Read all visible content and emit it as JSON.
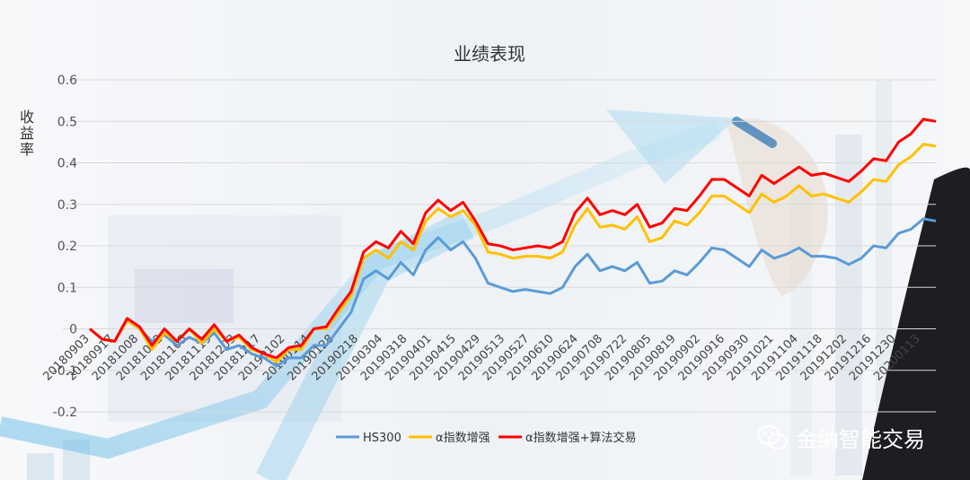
{
  "watermark": {
    "text": "金纳智能交易",
    "icon": "wechat-icon"
  },
  "colors": {
    "hs300": "#5b9bd5",
    "alpha": "#ffc000",
    "alpha_algo": "#ff0000"
  },
  "chart_data": {
    "type": "line",
    "title": "业绩表现",
    "ylabel": "收益率",
    "xlabel": "",
    "ylim": [
      -0.2,
      0.6
    ],
    "yticks": [
      -0.2,
      -0.1,
      0,
      0.1,
      0.2,
      0.3,
      0.4,
      0.5,
      0.6
    ],
    "grid": true,
    "legend": "bottom",
    "x_tick_labels": [
      "20180903",
      "20180917",
      "20181008",
      "20181022",
      "20181105",
      "20181119",
      "20181203",
      "20181217",
      "20190102",
      "20190114",
      "20190128",
      "20190218",
      "20190304",
      "20190318",
      "20190401",
      "20190415",
      "20190429",
      "20190513",
      "20190527",
      "20190610",
      "20190624",
      "20190708",
      "20190722",
      "20190805",
      "20190819",
      "20190902",
      "20190916",
      "20190930",
      "20191021",
      "20191104",
      "20191118",
      "20191202",
      "20191216",
      "20191230",
      "20200113"
    ],
    "series": [
      {
        "name": "HS300",
        "values": [
          0.0,
          -0.025,
          -0.03,
          0.02,
          0.0,
          -0.03,
          -0.015,
          -0.04,
          -0.02,
          -0.035,
          -0.01,
          -0.05,
          -0.04,
          -0.06,
          -0.07,
          -0.09,
          -0.07,
          -0.07,
          -0.04,
          -0.04,
          0.0,
          0.04,
          0.12,
          0.14,
          0.12,
          0.16,
          0.13,
          0.19,
          0.22,
          0.19,
          0.21,
          0.17,
          0.11,
          0.1,
          0.09,
          0.095,
          0.09,
          0.085,
          0.1,
          0.15,
          0.18,
          0.14,
          0.15,
          0.14,
          0.16,
          0.11,
          0.115,
          0.14,
          0.13,
          0.16,
          0.195,
          0.19,
          0.17,
          0.15,
          0.19,
          0.17,
          0.18,
          0.195,
          0.175,
          0.175,
          0.17,
          0.155,
          0.17,
          0.2,
          0.195,
          0.23,
          0.24,
          0.265,
          0.26
        ]
      },
      {
        "name": "α指数增强",
        "values": [
          0.0,
          -0.025,
          -0.03,
          0.02,
          0.0,
          -0.05,
          -0.01,
          -0.03,
          0.0,
          -0.035,
          0.0,
          -0.03,
          -0.02,
          -0.05,
          -0.06,
          -0.08,
          -0.05,
          -0.05,
          0.0,
          0.0,
          0.04,
          0.08,
          0.17,
          0.19,
          0.17,
          0.21,
          0.19,
          0.26,
          0.29,
          0.27,
          0.285,
          0.25,
          0.185,
          0.18,
          0.17,
          0.175,
          0.175,
          0.17,
          0.185,
          0.25,
          0.29,
          0.245,
          0.25,
          0.24,
          0.27,
          0.21,
          0.22,
          0.26,
          0.25,
          0.28,
          0.32,
          0.32,
          0.3,
          0.28,
          0.325,
          0.305,
          0.32,
          0.345,
          0.32,
          0.325,
          0.315,
          0.305,
          0.33,
          0.36,
          0.355,
          0.395,
          0.415,
          0.445,
          0.44
        ]
      },
      {
        "name": "α指数增强+算法交易",
        "values": [
          0.0,
          -0.025,
          -0.03,
          0.025,
          0.005,
          -0.04,
          0.0,
          -0.03,
          0.0,
          -0.025,
          0.01,
          -0.03,
          -0.015,
          -0.045,
          -0.06,
          -0.07,
          -0.045,
          -0.04,
          0.0,
          0.005,
          0.05,
          0.09,
          0.185,
          0.21,
          0.195,
          0.235,
          0.205,
          0.28,
          0.31,
          0.285,
          0.305,
          0.26,
          0.205,
          0.2,
          0.19,
          0.195,
          0.2,
          0.195,
          0.21,
          0.28,
          0.315,
          0.275,
          0.285,
          0.275,
          0.3,
          0.245,
          0.255,
          0.29,
          0.285,
          0.32,
          0.36,
          0.36,
          0.34,
          0.32,
          0.37,
          0.35,
          0.37,
          0.39,
          0.37,
          0.375,
          0.365,
          0.355,
          0.38,
          0.41,
          0.405,
          0.45,
          0.47,
          0.505,
          0.5
        ]
      }
    ]
  }
}
